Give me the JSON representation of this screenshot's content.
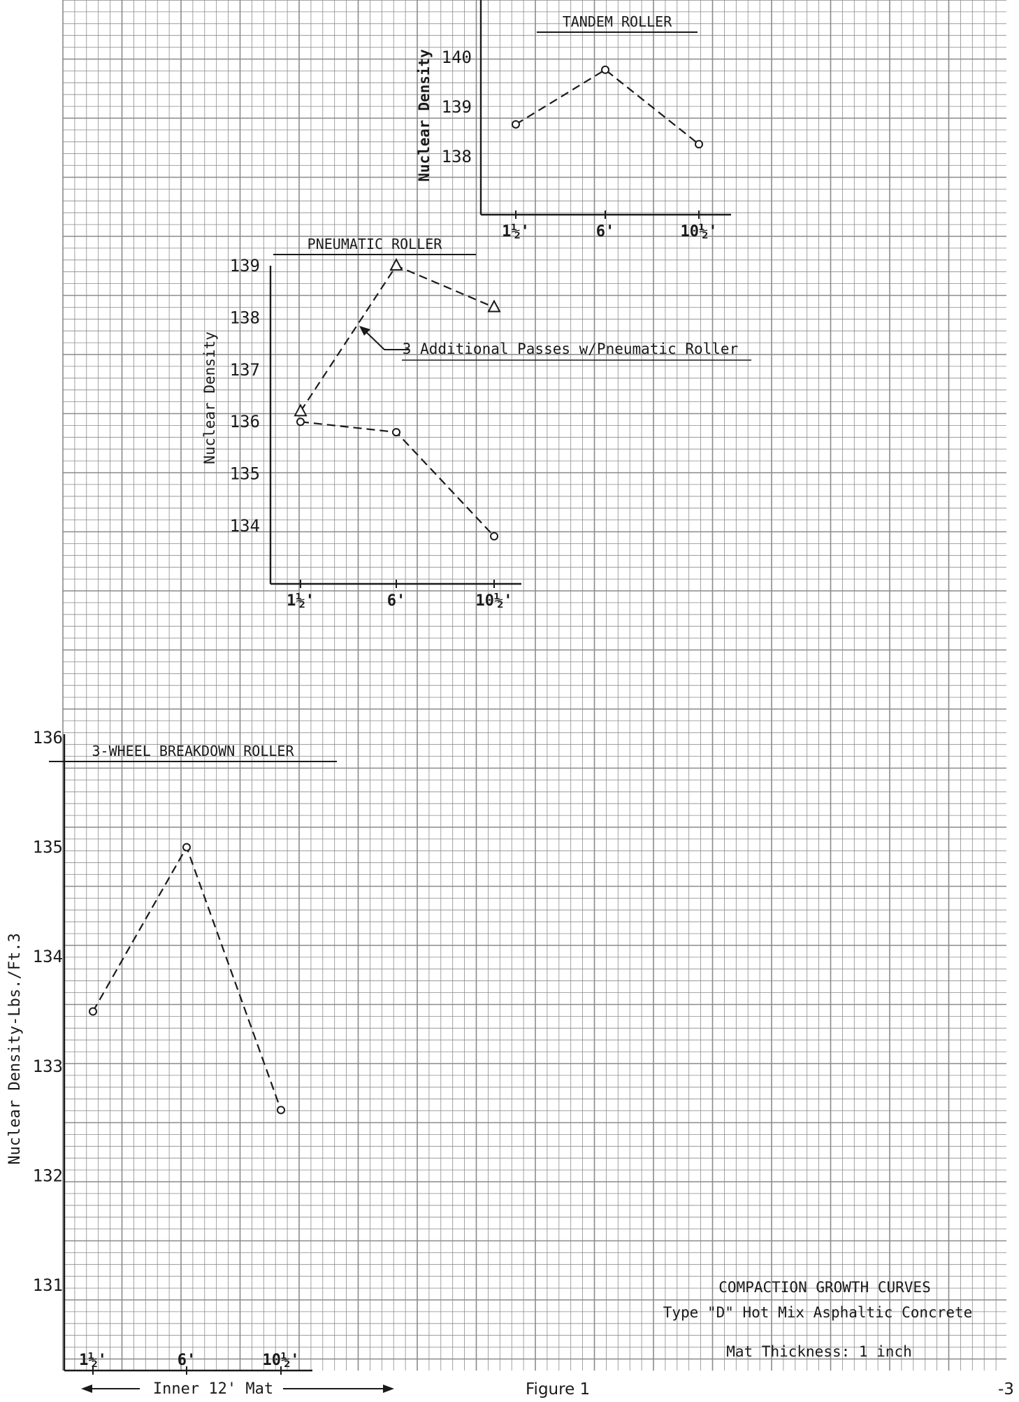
{
  "page": {
    "figure_label": "Figure 1",
    "page_number": "-3",
    "left_axis_label": "Nuclear Density-Lbs./Ft.3",
    "bottom_caption": "Inner 12' Mat",
    "caption": {
      "line1": "COMPACTION GROWTH CURVES",
      "line2": "Type \"D\" Hot Mix Asphaltic Concrete",
      "line3": "Mat Thickness: 1 inch"
    },
    "colors": {
      "ink": "#1a1a1a",
      "grid": "#8a8a8a",
      "paper": "#ffffff"
    }
  },
  "chart_data": [
    {
      "type": "line",
      "title": "TANDEM ROLLER",
      "ylabel": "Nuclear Density",
      "xlabel": "",
      "categories": [
        "1½'",
        "6'",
        "10½'"
      ],
      "ylim": [
        137.5,
        140.4
      ],
      "yticks": [
        138,
        139,
        140
      ],
      "ytick_labels": [
        "138",
        "139",
        "140"
      ],
      "series": [
        {
          "values": [
            138.65,
            139.75,
            138.25
          ],
          "marker": "circle"
        }
      ]
    },
    {
      "type": "line",
      "title": "PNEUMATIC ROLLER",
      "ylabel": "Nuclear Density",
      "xlabel": "",
      "categories": [
        "1½'",
        "6'",
        "10½'"
      ],
      "ylim": [
        133.3,
        139.0
      ],
      "yticks": [
        134,
        135,
        136,
        137,
        138,
        139
      ],
      "ytick_labels": [
        "134",
        "135",
        "136",
        "137",
        "138",
        "139"
      ],
      "annotation": "3 Additional Passes w/Pneumatic Roller",
      "series": [
        {
          "values": [
            136.0,
            135.8,
            133.8
          ],
          "marker": "circle"
        },
        {
          "values": [
            136.2,
            139.0,
            138.2
          ],
          "marker": "triangle"
        }
      ]
    },
    {
      "type": "line",
      "title": "3-WHEEL BREAKDOWN ROLLER",
      "ylabel": "Nuclear Density-Lbs./Ft.3",
      "xlabel": "Inner 12' Mat",
      "categories": [
        "1½'",
        "6'",
        "10½'"
      ],
      "ylim": [
        130.0,
        136.0
      ],
      "yticks": [
        131,
        132,
        133,
        134,
        135,
        136
      ],
      "ytick_labels": [
        "131",
        "132",
        "133",
        "134",
        "135",
        "136"
      ],
      "series": [
        {
          "values": [
            133.5,
            135.0,
            132.6
          ],
          "marker": "circle"
        }
      ]
    }
  ]
}
